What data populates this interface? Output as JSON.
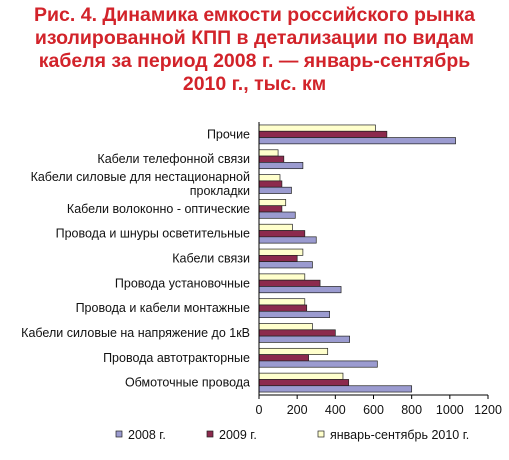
{
  "title_lines": [
    "Рис. 4. Динамика емкости российского рынка",
    "изолированной КПП в детализации по видам",
    "кабеля за период 2008 г. — январь-сентябрь",
    "2010 г., тыс. км"
  ],
  "chart_data": {
    "type": "bar",
    "orientation": "horizontal",
    "title": "Рис. 4. Динамика емкости российского рынка изолированной КПП в детализации по видам кабеля за период 2008 г. — январь-сентябрь 2010 г., тыс. км",
    "categories": [
      [
        "Прочие"
      ],
      [
        "Кабели телефонной связи"
      ],
      [
        "Кабели силовые для нестационарной",
        "прокладки"
      ],
      [
        "Кабели волоконно - оптические"
      ],
      [
        "Провода и шнуры осветительные"
      ],
      [
        "Кабели связи"
      ],
      [
        "Провода установочные"
      ],
      [
        "Провода и кабели монтажные"
      ],
      [
        "Кабели силовые на напряжение до 1кВ"
      ],
      [
        "Провода автотракторные"
      ],
      [
        "Обмоточные провода"
      ]
    ],
    "series": [
      {
        "name": "2008 г.",
        "color": "#9b9bd0",
        "values": [
          1030,
          230,
          170,
          190,
          300,
          280,
          430,
          370,
          475,
          620,
          800
        ]
      },
      {
        "name": "2009 г.",
        "color": "#8c2a4d",
        "values": [
          670,
          130,
          120,
          120,
          240,
          200,
          320,
          250,
          400,
          260,
          470
        ]
      },
      {
        "name": "январь-сентябрь 2010 г.",
        "color": "#ffffcc",
        "values": [
          610,
          100,
          110,
          140,
          175,
          230,
          240,
          240,
          280,
          360,
          440
        ]
      }
    ],
    "xlim": [
      0,
      1200
    ],
    "xticks": [
      0,
      200,
      400,
      600,
      800,
      1000,
      1200
    ],
    "grid": false,
    "legend": "bottom"
  }
}
